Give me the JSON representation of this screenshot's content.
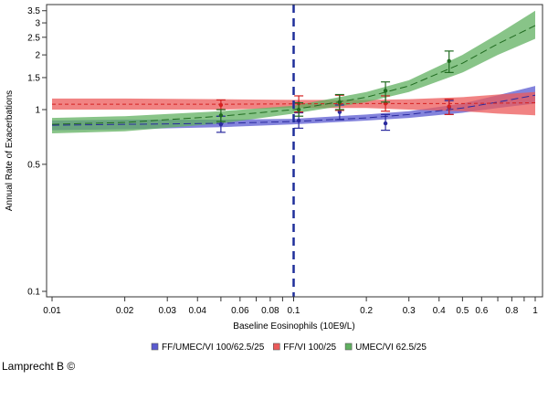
{
  "chart_data": {
    "type": "line",
    "xlabel": "Baseline Eosinophils (10E9/L)",
    "ylabel": "Annual Rate of Exacerbations",
    "x_scale": "log",
    "y_scale": "log",
    "xlim": [
      0.0095,
      1.05
    ],
    "ylim": [
      0.093,
      3.8
    ],
    "x_ticks": [
      0.01,
      0.02,
      0.03,
      0.04,
      0.05,
      0.06,
      0.07,
      0.08,
      0.09,
      0.1,
      0.2,
      0.3,
      0.4,
      0.5,
      0.6,
      0.7,
      0.8,
      0.9,
      1
    ],
    "x_tick_labels": [
      "0.01",
      "0.02",
      "0.03",
      "0.04",
      "",
      "0.06",
      "",
      "0.08",
      "",
      "0.1",
      "0.2",
      "0.3",
      "0.4",
      "0.5",
      "0.6",
      "",
      "0.8",
      "",
      "1"
    ],
    "y_ticks": [
      0.1,
      0.5,
      1,
      1.5,
      2,
      2.5,
      3,
      3.5
    ],
    "y_tick_labels": [
      "0.1",
      "0.5",
      "1",
      "1.5",
      "2",
      "2.5",
      "3",
      "3.5"
    ],
    "reference_line_x": 0.1,
    "reference_line_color": "#1f2f9a",
    "legend_position": "bottom",
    "curve_x": [
      0.01,
      0.02,
      0.05,
      0.1,
      0.2,
      0.3,
      0.5,
      0.7,
      1
    ],
    "series": [
      {
        "name": "FF/UMEC/VI 100/62.5/25",
        "color": "#2a2a9e",
        "band_color": "#5a5ad0",
        "curve": [
          0.82,
          0.83,
          0.84,
          0.86,
          0.9,
          0.94,
          1.02,
          1.1,
          1.2
        ],
        "lower": [
          0.77,
          0.78,
          0.8,
          0.83,
          0.87,
          0.9,
          0.96,
          1.02,
          1.08
        ],
        "upper": [
          0.87,
          0.88,
          0.88,
          0.89,
          0.94,
          0.98,
          1.08,
          1.2,
          1.35
        ],
        "points": [
          {
            "x": 0.05,
            "y": 0.83,
            "lo": 0.75,
            "hi": 0.92
          },
          {
            "x": 0.105,
            "y": 0.87,
            "lo": 0.79,
            "hi": 0.96
          },
          {
            "x": 0.155,
            "y": 0.97,
            "lo": 0.88,
            "hi": 1.06
          },
          {
            "x": 0.24,
            "y": 0.84,
            "lo": 0.77,
            "hi": 0.94
          },
          {
            "x": 0.44,
            "y": 1.03,
            "lo": 0.94,
            "hi": 1.12
          }
        ]
      },
      {
        "name": "FF/VI 100/25",
        "color": "#d42020",
        "band_color": "#ec5a5a",
        "curve": [
          1.07,
          1.07,
          1.07,
          1.075,
          1.08,
          1.08,
          1.08,
          1.085,
          1.09
        ],
        "lower": [
          1.0,
          1.0,
          1.0,
          1.02,
          1.02,
          1.0,
          0.98,
          0.95,
          0.93
        ],
        "upper": [
          1.15,
          1.15,
          1.14,
          1.13,
          1.13,
          1.14,
          1.17,
          1.21,
          1.25
        ],
        "points": [
          {
            "x": 0.05,
            "y": 1.06,
            "lo": 1.0,
            "hi": 1.13
          },
          {
            "x": 0.105,
            "y": 1.08,
            "lo": 0.97,
            "hi": 1.19
          },
          {
            "x": 0.155,
            "y": 1.08,
            "lo": 0.99,
            "hi": 1.2
          },
          {
            "x": 0.24,
            "y": 1.08,
            "lo": 0.98,
            "hi": 1.19
          },
          {
            "x": 0.44,
            "y": 1.04,
            "lo": 0.94,
            "hi": 1.14
          }
        ]
      },
      {
        "name": "UMEC/VI 62.5/25",
        "color": "#1f6a1f",
        "band_color": "#60b060",
        "curve": [
          0.83,
          0.85,
          0.92,
          1.0,
          1.17,
          1.35,
          1.8,
          2.3,
          2.9
        ],
        "lower": [
          0.74,
          0.76,
          0.84,
          0.95,
          1.1,
          1.25,
          1.6,
          2.0,
          2.45
        ],
        "upper": [
          0.9,
          0.92,
          0.98,
          1.05,
          1.25,
          1.45,
          2.0,
          2.6,
          3.5
        ],
        "points": [
          {
            "x": 0.05,
            "y": 0.93,
            "lo": 0.86,
            "hi": 1.0
          },
          {
            "x": 0.105,
            "y": 1.0,
            "lo": 0.92,
            "hi": 1.09
          },
          {
            "x": 0.155,
            "y": 1.1,
            "lo": 1.0,
            "hi": 1.21
          },
          {
            "x": 0.24,
            "y": 1.27,
            "lo": 1.1,
            "hi": 1.42
          },
          {
            "x": 0.44,
            "y": 1.85,
            "lo": 1.6,
            "hi": 2.1
          }
        ]
      }
    ]
  },
  "footer": "Lamprecht B ©"
}
